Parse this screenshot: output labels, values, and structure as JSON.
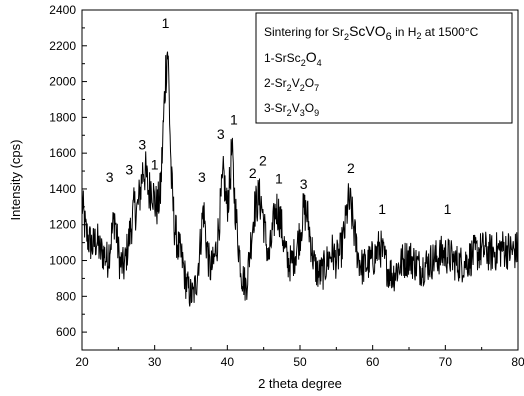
{
  "chart_data": {
    "type": "line",
    "xlabel": "2 theta degree",
    "ylabel": "Intensity (cps)",
    "xlim": [
      20,
      80
    ],
    "ylim": [
      500,
      2400
    ],
    "x_ticks": [
      20,
      30,
      40,
      50,
      60,
      70,
      80
    ],
    "y_ticks": [
      600,
      800,
      1000,
      1200,
      1400,
      1600,
      1800,
      2000,
      2200,
      2400
    ],
    "x_tick_labels": [
      "20",
      "30",
      "40",
      "50",
      "60",
      "70",
      "80"
    ],
    "y_tick_labels": [
      "600",
      "800",
      "1000",
      "1200",
      "1400",
      "1600",
      "1800",
      "2000",
      "2200",
      "2400"
    ],
    "grid": false,
    "legend_position": "top-right",
    "legend": {
      "title_prefix": "Sintering for Sr",
      "title_sub1": "2",
      "title_mid": "ScVO",
      "title_sub2": "6",
      "title_mid2": " in H",
      "title_sub3": "2",
      "title_suffix": " at 1500°C",
      "entries": [
        {
          "prefix": "1-SrSc",
          "sub1": "2",
          "mid": "O",
          "sub2": "4",
          "mid2": "",
          "sub3": ""
        },
        {
          "prefix": "2-Sr",
          "sub1": "2",
          "mid": "V",
          "sub2": "2",
          "mid2": "O",
          "sub3": "7"
        },
        {
          "prefix": "3-Sr",
          "sub1": "2",
          "mid": "V",
          "sub2": "3",
          "mid2": "O",
          "sub3": "9"
        }
      ]
    },
    "anchors": [
      [
        20.0,
        1330
      ],
      [
        20.5,
        1160
      ],
      [
        21.0,
        1110
      ],
      [
        21.5,
        1080
      ],
      [
        22.0,
        1120
      ],
      [
        22.5,
        1050
      ],
      [
        23.0,
        1040
      ],
      [
        23.5,
        1000
      ],
      [
        24.0,
        1120
      ],
      [
        24.5,
        1250
      ],
      [
        24.8,
        1120
      ],
      [
        25.2,
        990
      ],
      [
        25.8,
        960
      ],
      [
        26.3,
        1080
      ],
      [
        26.8,
        1200
      ],
      [
        27.2,
        1300
      ],
      [
        27.6,
        1280
      ],
      [
        28.0,
        1380
      ],
      [
        28.4,
        1520
      ],
      [
        28.8,
        1480
      ],
      [
        29.2,
        1380
      ],
      [
        29.6,
        1430
      ],
      [
        30.0,
        1320
      ],
      [
        30.4,
        1300
      ],
      [
        30.8,
        1380
      ],
      [
        31.2,
        1750
      ],
      [
        31.5,
        2050
      ],
      [
        31.8,
        2200
      ],
      [
        32.0,
        1900
      ],
      [
        32.3,
        1450
      ],
      [
        32.7,
        1200
      ],
      [
        33.2,
        1080
      ],
      [
        33.8,
        1000
      ],
      [
        34.3,
        880
      ],
      [
        34.8,
        820
      ],
      [
        35.3,
        800
      ],
      [
        35.8,
        900
      ],
      [
        36.3,
        1100
      ],
      [
        36.7,
        1300
      ],
      [
        37.1,
        1100
      ],
      [
        37.6,
        950
      ],
      [
        38.1,
        980
      ],
      [
        38.6,
        1100
      ],
      [
        39.1,
        1320
      ],
      [
        39.5,
        1480
      ],
      [
        39.9,
        1300
      ],
      [
        40.3,
        1400
      ],
      [
        40.6,
        1620
      ],
      [
        41.0,
        1350
      ],
      [
        41.5,
        1100
      ],
      [
        42.0,
        920
      ],
      [
        42.6,
        850
      ],
      [
        43.1,
        1050
      ],
      [
        43.7,
        1280
      ],
      [
        44.3,
        1350
      ],
      [
        44.7,
        1320
      ],
      [
        45.2,
        1150
      ],
      [
        45.7,
        1000
      ],
      [
        46.2,
        1150
      ],
      [
        46.7,
        1300
      ],
      [
        47.2,
        1250
      ],
      [
        47.7,
        1120
      ],
      [
        48.2,
        1000
      ],
      [
        48.8,
        980
      ],
      [
        49.4,
        1050
      ],
      [
        50.0,
        1150
      ],
      [
        50.5,
        1280
      ],
      [
        51.0,
        1260
      ],
      [
        51.5,
        1100
      ],
      [
        52.0,
        970
      ],
      [
        52.6,
        920
      ],
      [
        53.2,
        940
      ],
      [
        53.8,
        1000
      ],
      [
        54.4,
        1050
      ],
      [
        55.0,
        1000
      ],
      [
        55.6,
        1050
      ],
      [
        56.1,
        1150
      ],
      [
        56.6,
        1320
      ],
      [
        57.0,
        1300
      ],
      [
        57.5,
        1150
      ],
      [
        58.0,
        1020
      ],
      [
        58.6,
        960
      ],
      [
        59.2,
        980
      ],
      [
        59.8,
        1000
      ],
      [
        60.4,
        1030
      ],
      [
        61.0,
        1080
      ],
      [
        61.5,
        1020
      ],
      [
        62.1,
        950
      ],
      [
        62.8,
        920
      ],
      [
        63.5,
        960
      ],
      [
        64.2,
        1000
      ],
      [
        65.0,
        1020
      ],
      [
        65.8,
        990
      ],
      [
        66.6,
        960
      ],
      [
        67.4,
        980
      ],
      [
        68.2,
        1000
      ],
      [
        69.0,
        1020
      ],
      [
        69.8,
        1040
      ],
      [
        70.6,
        1020
      ],
      [
        71.4,
        990
      ],
      [
        72.2,
        980
      ],
      [
        73.0,
        1000
      ],
      [
        73.8,
        1030
      ],
      [
        74.6,
        1050
      ],
      [
        75.4,
        1060
      ],
      [
        76.2,
        1040
      ],
      [
        77.0,
        1050
      ],
      [
        77.8,
        1070
      ],
      [
        78.6,
        1060
      ],
      [
        79.4,
        1050
      ],
      [
        80.0,
        1060
      ]
    ],
    "peak_labels": [
      {
        "text": "3",
        "x": 23.8,
        "y": 1440
      },
      {
        "text": "3",
        "x": 26.5,
        "y": 1480
      },
      {
        "text": "3",
        "x": 28.3,
        "y": 1620
      },
      {
        "text": "1",
        "x": 30.0,
        "y": 1510
      },
      {
        "text": "1",
        "x": 31.5,
        "y": 2300
      },
      {
        "text": "3",
        "x": 36.5,
        "y": 1440
      },
      {
        "text": "3",
        "x": 39.1,
        "y": 1680
      },
      {
        "text": "1",
        "x": 40.9,
        "y": 1760
      },
      {
        "text": "2",
        "x": 43.5,
        "y": 1460
      },
      {
        "text": "2",
        "x": 44.9,
        "y": 1530
      },
      {
        "text": "1",
        "x": 47.1,
        "y": 1430
      },
      {
        "text": "3",
        "x": 50.5,
        "y": 1400
      },
      {
        "text": "2",
        "x": 57.0,
        "y": 1490
      },
      {
        "text": "1",
        "x": 61.3,
        "y": 1260
      },
      {
        "text": "1",
        "x": 70.3,
        "y": 1260
      }
    ]
  }
}
